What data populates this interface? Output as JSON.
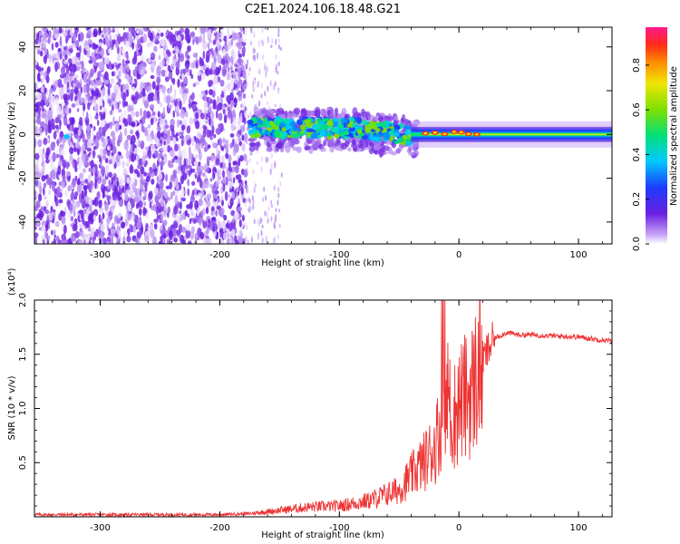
{
  "title": "C2E1.2024.106.18.48.G21",
  "top_panel": {
    "xlabel": "Height of straight line (km)",
    "ylabel": "Frequency (Hz)",
    "xticks": [
      "-300",
      "-200",
      "-100",
      "0",
      "100"
    ],
    "yticks": [
      "40",
      "20",
      "0",
      "-20",
      "-40"
    ],
    "colorbar_label": "Normalized spectral amplitude",
    "colorbar_ticks": [
      "0.0",
      "0.2",
      "0.4",
      "0.6",
      "0.8"
    ]
  },
  "bottom_panel": {
    "xlabel": "Height of straight line (km)",
    "ylabel": "SNR (10 * v/v)",
    "exponent_label": "(x10⁴)",
    "xticks": [
      "-300",
      "-200",
      "-100",
      "0",
      "100"
    ],
    "yticks": [
      "2.0",
      "1.5",
      "1.0",
      "0.5"
    ]
  },
  "colors": {
    "line": "#ee3333",
    "spectrum_low": "#b58cf0",
    "spectrum_mid": "#6a1fe0"
  },
  "chart_data": [
    {
      "type": "heatmap",
      "title": "C2E1.2024.106.18.48.G21",
      "xlabel": "Height of straight line (km)",
      "ylabel": "Frequency (Hz)",
      "xlim": [
        -355,
        128
      ],
      "ylim": [
        -50,
        49
      ],
      "colorbar": {
        "label": "Normalized spectral amplitude",
        "range": [
          0.0,
          0.97
        ]
      },
      "regions": [
        {
          "x_range": [
            -355,
            -175
          ],
          "description_level": 0.15
        },
        {
          "x_range": [
            -175,
            -40
          ],
          "center_freq": 2,
          "level": 0.45
        },
        {
          "x_range": [
            -40,
            128
          ],
          "center_freq": 0,
          "level": 0.65
        }
      ]
    },
    {
      "type": "line",
      "xlabel": "Height of straight line (km)",
      "ylabel": "SNR (10 * v/v)",
      "xlim": [
        -355,
        128
      ],
      "ylim": [
        0,
        20000
      ],
      "x": [
        -355,
        -300,
        -250,
        -200,
        -175,
        -150,
        -125,
        -100,
        -75,
        -50,
        -40,
        -30,
        -20,
        -15,
        -10,
        -5,
        0,
        10,
        20,
        30,
        40,
        50,
        60,
        80,
        100,
        128
      ],
      "y": [
        200,
        200,
        200,
        200,
        300,
        600,
        900,
        1000,
        1500,
        2500,
        3800,
        5000,
        6500,
        9000,
        11000,
        9000,
        10500,
        11500,
        14500,
        16500,
        17000,
        16800,
        16800,
        16700,
        16600,
        16200
      ]
    }
  ]
}
